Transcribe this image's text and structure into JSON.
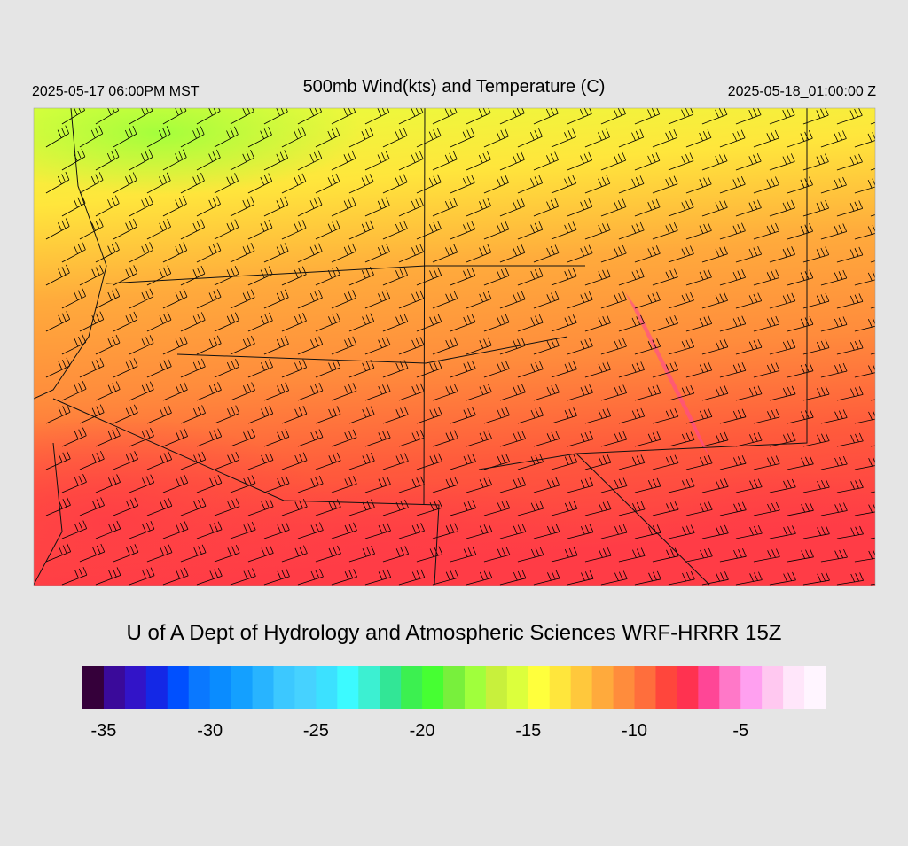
{
  "header": {
    "left": "2025-05-17 06:00PM MST",
    "title": "500mb Wind(kts) and Temperature (C)",
    "right": "2025-05-18_01:00:00 Z"
  },
  "footer": {
    "credit": "U of A Dept of Hydrology and Atmospheric Sciences WRF-HRRR 15Z"
  },
  "colorbar": {
    "range": [
      -36,
      -1
    ],
    "ticks": [
      -35,
      -30,
      -25,
      -20,
      -15,
      -10,
      -5
    ],
    "colors": [
      "#35003a",
      "#3a0a9a",
      "#3214c8",
      "#1428e6",
      "#0050ff",
      "#0a78ff",
      "#0a8cff",
      "#14a0ff",
      "#28b4ff",
      "#3cc8ff",
      "#46d2ff",
      "#3ce1ff",
      "#3cfaff",
      "#3cf0d2",
      "#32e696",
      "#3cf050",
      "#46ff32",
      "#78f03c",
      "#a0ff3c",
      "#c8f03c",
      "#dcff3c",
      "#ffff3c",
      "#ffe63c",
      "#ffc83c",
      "#ffaa3c",
      "#ff8c3c",
      "#ff6e3c",
      "#ff463c",
      "#ff3250",
      "#ff4696",
      "#ff78c8",
      "#ffa0f0",
      "#ffc8f0",
      "#ffe6fa",
      "#fff5ff"
    ]
  }
}
